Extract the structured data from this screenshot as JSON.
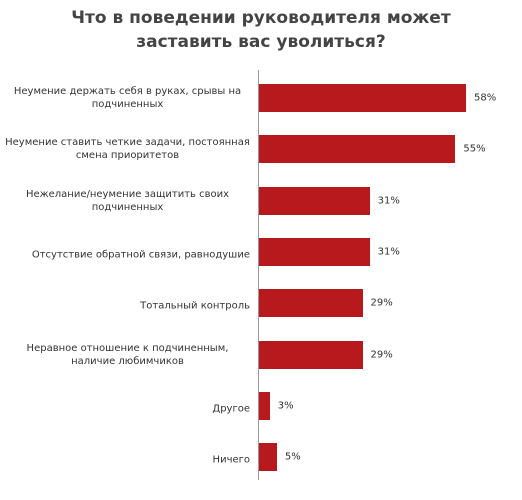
{
  "chart_data": {
    "type": "bar",
    "orientation": "horizontal",
    "title": "Что в поведении руководителя может заставить вас уволиться?",
    "categories": [
      "Неумение держать себя в руках, срывы на подчиненных",
      "Неумение ставить четкие задачи, постоянная смена приоритетов",
      "Нежелание/неумение защитить своих подчиненных",
      "Отсутствие обратной связи, равнодушие",
      "Тотальный контроль",
      "Неравное отношение к подчиненным, наличие любимчиков",
      "Другое",
      "Ничего"
    ],
    "values": [
      58,
      55,
      31,
      31,
      29,
      29,
      3,
      5
    ],
    "value_labels": [
      "58%",
      "55%",
      "31%",
      "31%",
      "29%",
      "29%",
      "3%",
      "5%"
    ],
    "color": "#b8191c"
  }
}
